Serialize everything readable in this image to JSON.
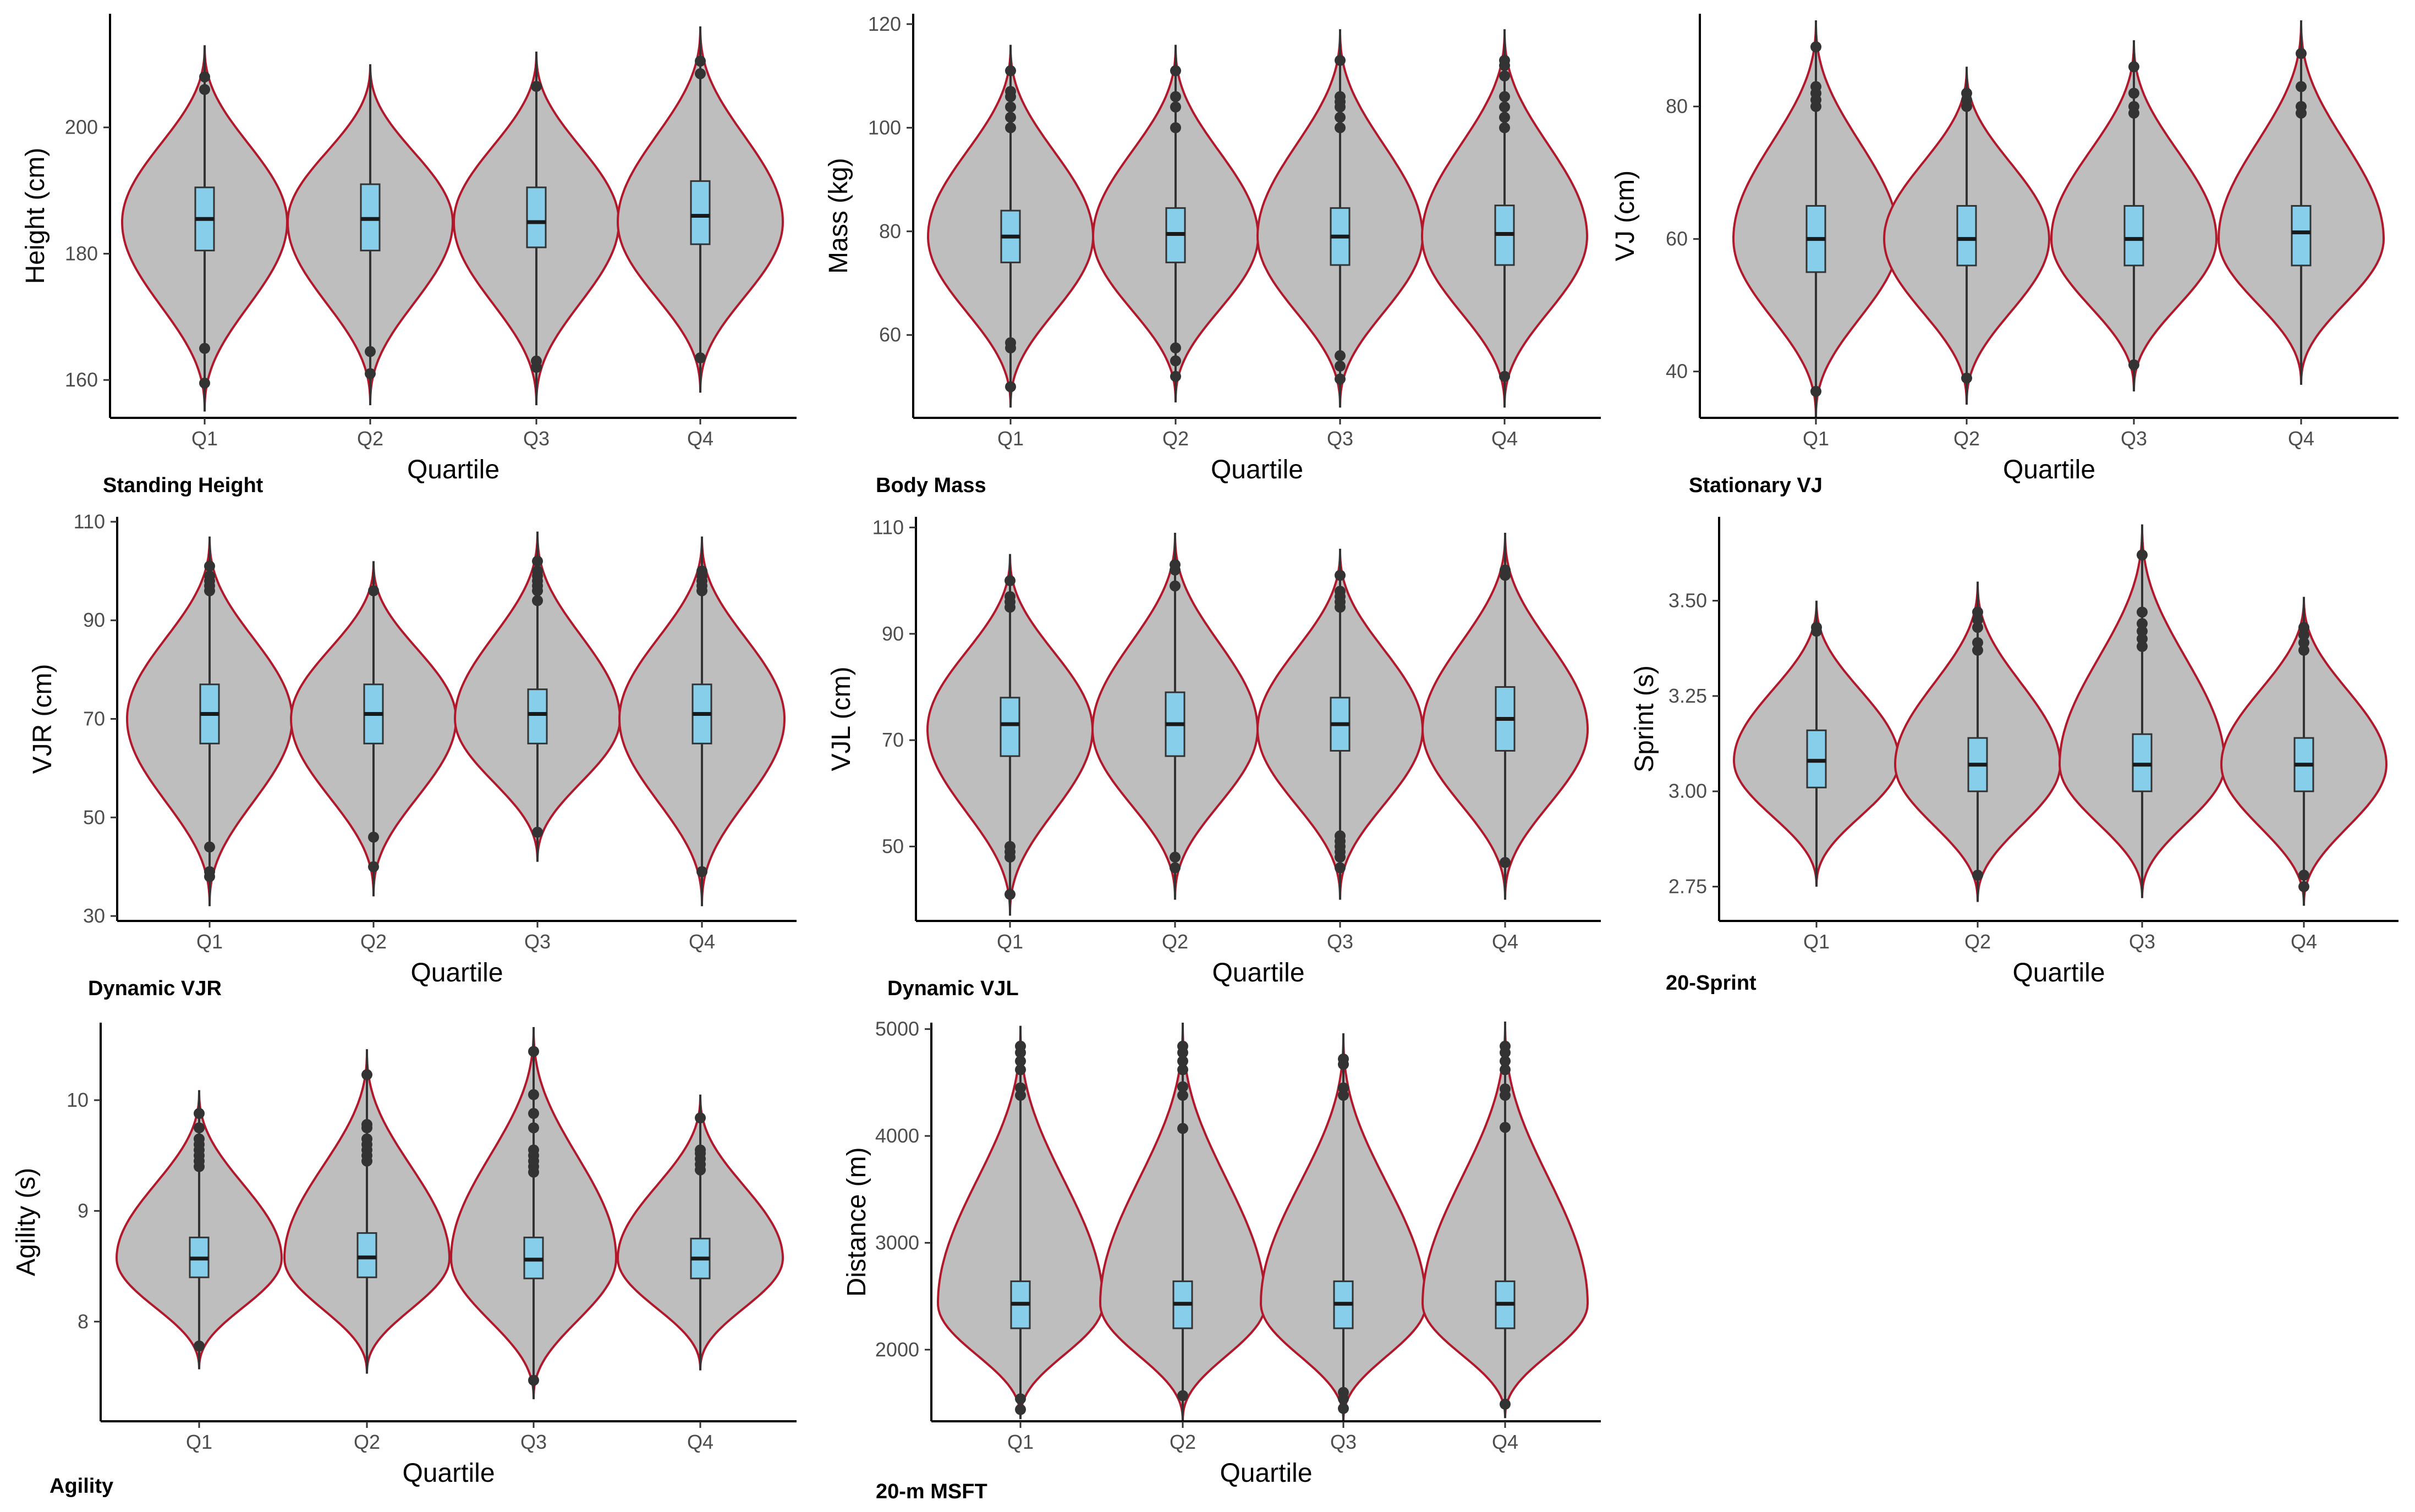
{
  "colors": {
    "violin_fill": "#bebebe",
    "violin_stroke": "#b2182b",
    "box_fill": "#87ceeb",
    "box_stroke": "#333333",
    "median": "#1a1a1a",
    "outlier": "#333333",
    "axis": "#000000",
    "tick_text": "#4d4d4d"
  },
  "chart_data": [
    {
      "type": "violin",
      "caption": "Standing Height",
      "xlabel": "Quartile",
      "ylabel": "Height (cm)",
      "categories": [
        "Q1",
        "Q2",
        "Q3",
        "Q4"
      ],
      "ylim": [
        154,
        218
      ],
      "yticks": [
        160,
        180,
        200
      ],
      "ytick_labels": [
        "160",
        "180",
        "200"
      ],
      "violins": [
        {
          "min": 155,
          "max": 213,
          "peak": 185
        },
        {
          "min": 156,
          "max": 210,
          "peak": 185
        },
        {
          "min": 156,
          "max": 212,
          "peak": 185
        },
        {
          "min": 158,
          "max": 216,
          "peak": 185
        }
      ],
      "boxes": [
        {
          "q1": 180.5,
          "median": 185.5,
          "q3": 190.5
        },
        {
          "q1": 180.5,
          "median": 185.5,
          "q3": 191
        },
        {
          "q1": 181,
          "median": 185,
          "q3": 190.5
        },
        {
          "q1": 181.5,
          "median": 186,
          "q3": 191.5
        }
      ],
      "outliers": [
        [
          159.5,
          165,
          206,
          208
        ],
        [
          161,
          164.5
        ],
        [
          162,
          163,
          206.5
        ],
        [
          163.5,
          208.5,
          210.5
        ]
      ]
    },
    {
      "type": "violin",
      "caption": "Body Mass",
      "xlabel": "Quartile",
      "ylabel": "Mass (kg)",
      "categories": [
        "Q1",
        "Q2",
        "Q3",
        "Q4"
      ],
      "ylim": [
        44,
        122
      ],
      "yticks": [
        60,
        80,
        100,
        120
      ],
      "ytick_labels": [
        "60",
        "80",
        "100",
        "120"
      ],
      "violins": [
        {
          "min": 46,
          "max": 116,
          "peak": 79
        },
        {
          "min": 47,
          "max": 116,
          "peak": 79
        },
        {
          "min": 46,
          "max": 119,
          "peak": 79
        },
        {
          "min": 46,
          "max": 119,
          "peak": 79
        }
      ],
      "boxes": [
        {
          "q1": 74,
          "median": 79,
          "q3": 84
        },
        {
          "q1": 74,
          "median": 79.5,
          "q3": 84.5
        },
        {
          "q1": 73.5,
          "median": 79,
          "q3": 84.5
        },
        {
          "q1": 73.5,
          "median": 79.5,
          "q3": 85
        }
      ],
      "outliers": [
        [
          50,
          57.5,
          58.5,
          100,
          102,
          104,
          106,
          107,
          111
        ],
        [
          52,
          55,
          57.5,
          100,
          104,
          106,
          111
        ],
        [
          51.5,
          54,
          56,
          100,
          102,
          104,
          105,
          106,
          113
        ],
        [
          52,
          100,
          102,
          104,
          106,
          110,
          112,
          113
        ]
      ]
    },
    {
      "type": "violin",
      "caption": "Stationary VJ",
      "xlabel": "Quartile",
      "ylabel": "VJ (cm)",
      "categories": [
        "Q1",
        "Q2",
        "Q3",
        "Q4"
      ],
      "ylim": [
        33,
        94
      ],
      "yticks": [
        40,
        60,
        80
      ],
      "ytick_labels": [
        "40",
        "60",
        "80"
      ],
      "violins": [
        {
          "min": 33,
          "max": 93,
          "peak": 60
        },
        {
          "min": 35,
          "max": 86,
          "peak": 60
        },
        {
          "min": 37,
          "max": 90,
          "peak": 60
        },
        {
          "min": 38,
          "max": 93,
          "peak": 60
        }
      ],
      "boxes": [
        {
          "q1": 55,
          "median": 60,
          "q3": 65
        },
        {
          "q1": 56,
          "median": 60,
          "q3": 65
        },
        {
          "q1": 56,
          "median": 60,
          "q3": 65
        },
        {
          "q1": 56,
          "median": 61,
          "q3": 65
        }
      ],
      "outliers": [
        [
          37,
          80,
          81,
          82,
          83,
          89
        ],
        [
          39,
          80,
          81,
          82
        ],
        [
          41,
          79,
          80,
          82,
          86
        ],
        [
          79,
          80,
          83,
          88
        ]
      ]
    },
    {
      "type": "violin",
      "caption": "Dynamic VJR",
      "xlabel": "Quartile",
      "ylabel": "VJR (cm)",
      "categories": [
        "Q1",
        "Q2",
        "Q3",
        "Q4"
      ],
      "ylim": [
        29,
        111
      ],
      "yticks": [
        30,
        50,
        70,
        90,
        110
      ],
      "ytick_labels": [
        "30",
        "50",
        "70",
        "90",
        "110"
      ],
      "violins": [
        {
          "min": 32,
          "max": 107,
          "peak": 70
        },
        {
          "min": 34,
          "max": 102,
          "peak": 70
        },
        {
          "min": 41,
          "max": 108,
          "peak": 70
        },
        {
          "min": 32,
          "max": 107,
          "peak": 70
        }
      ],
      "boxes": [
        {
          "q1": 65,
          "median": 71,
          "q3": 77
        },
        {
          "q1": 65,
          "median": 71,
          "q3": 77
        },
        {
          "q1": 65,
          "median": 71,
          "q3": 76
        },
        {
          "q1": 65,
          "median": 71,
          "q3": 77
        }
      ],
      "outliers": [
        [
          38,
          39,
          44,
          96,
          97,
          98,
          99,
          101
        ],
        [
          40,
          46,
          96
        ],
        [
          47,
          94,
          96,
          97,
          98,
          99,
          100,
          102
        ],
        [
          39,
          96,
          97,
          98,
          99,
          100
        ]
      ]
    },
    {
      "type": "violin",
      "caption": "Dynamic VJL",
      "xlabel": "Quartile",
      "ylabel": "VJL (cm)",
      "categories": [
        "Q1",
        "Q2",
        "Q3",
        "Q4"
      ],
      "ylim": [
        36,
        112
      ],
      "yticks": [
        50,
        70,
        90,
        110
      ],
      "ytick_labels": [
        "50",
        "70",
        "90",
        "110"
      ],
      "violins": [
        {
          "min": 37,
          "max": 105,
          "peak": 72
        },
        {
          "min": 40,
          "max": 109,
          "peak": 72
        },
        {
          "min": 40,
          "max": 106,
          "peak": 72
        },
        {
          "min": 40,
          "max": 109,
          "peak": 72
        }
      ],
      "boxes": [
        {
          "q1": 67,
          "median": 73,
          "q3": 78
        },
        {
          "q1": 67,
          "median": 73,
          "q3": 79
        },
        {
          "q1": 68,
          "median": 73,
          "q3": 78
        },
        {
          "q1": 68,
          "median": 74,
          "q3": 80
        }
      ],
      "outliers": [
        [
          41,
          48,
          49,
          50,
          95,
          96,
          97,
          100
        ],
        [
          46,
          48,
          99,
          102,
          103
        ],
        [
          46,
          48,
          49,
          50,
          51,
          52,
          95,
          96,
          97,
          98,
          101
        ],
        [
          47,
          101,
          102
        ]
      ]
    },
    {
      "type": "violin",
      "caption": "20-Sprint",
      "xlabel": "Quartile",
      "ylabel": "Sprint (s)",
      "categories": [
        "Q1",
        "Q2",
        "Q3",
        "Q4"
      ],
      "ylim": [
        2.66,
        3.72
      ],
      "yticks": [
        2.75,
        3.0,
        3.25,
        3.5
      ],
      "ytick_labels": [
        "2.75",
        "3.00",
        "3.25",
        "3.50"
      ],
      "violins": [
        {
          "min": 2.75,
          "max": 3.5,
          "peak": 3.08
        },
        {
          "min": 2.71,
          "max": 3.55,
          "peak": 3.07
        },
        {
          "min": 2.72,
          "max": 3.7,
          "peak": 3.07
        },
        {
          "min": 2.7,
          "max": 3.51,
          "peak": 3.07
        }
      ],
      "boxes": [
        {
          "q1": 3.01,
          "median": 3.08,
          "q3": 3.16
        },
        {
          "q1": 3.0,
          "median": 3.07,
          "q3": 3.14
        },
        {
          "q1": 3.0,
          "median": 3.07,
          "q3": 3.15
        },
        {
          "q1": 3.0,
          "median": 3.07,
          "q3": 3.14
        }
      ],
      "outliers": [
        [
          3.42,
          3.43
        ],
        [
          2.78,
          3.37,
          3.39,
          3.43,
          3.45,
          3.47
        ],
        [
          3.38,
          3.4,
          3.42,
          3.44,
          3.47,
          3.62
        ],
        [
          2.75,
          2.78,
          3.37,
          3.39,
          3.41,
          3.43
        ]
      ]
    },
    {
      "type": "violin",
      "caption": "Agility",
      "xlabel": "Quartile",
      "ylabel": "Agility (s)",
      "categories": [
        "Q1",
        "Q2",
        "Q3",
        "Q4"
      ],
      "ylim": [
        7.1,
        10.7
      ],
      "yticks": [
        8,
        9,
        10
      ],
      "ytick_labels": [
        "8",
        "9",
        "10"
      ],
      "violins": [
        {
          "min": 7.57,
          "max": 10.09,
          "peak": 8.57
        },
        {
          "min": 7.53,
          "max": 10.46,
          "peak": 8.57
        },
        {
          "min": 7.3,
          "max": 10.66,
          "peak": 8.57
        },
        {
          "min": 7.56,
          "max": 10.05,
          "peak": 8.57
        }
      ],
      "boxes": [
        {
          "q1": 8.4,
          "median": 8.57,
          "q3": 8.76
        },
        {
          "q1": 8.4,
          "median": 8.58,
          "q3": 8.8
        },
        {
          "q1": 8.39,
          "median": 8.56,
          "q3": 8.76
        },
        {
          "q1": 8.39,
          "median": 8.57,
          "q3": 8.75
        }
      ],
      "outliers": [
        [
          7.78,
          9.4,
          9.45,
          9.5,
          9.55,
          9.6,
          9.65,
          9.75,
          9.88
        ],
        [
          9.45,
          9.5,
          9.55,
          9.6,
          9.65,
          9.75,
          9.78,
          10.23
        ],
        [
          7.47,
          9.35,
          9.4,
          9.45,
          9.5,
          9.55,
          9.75,
          9.88,
          10.05,
          10.44
        ],
        [
          9.37,
          9.42,
          9.47,
          9.52,
          9.55,
          9.84
        ]
      ]
    },
    {
      "type": "violin",
      "caption": "20-m MSFT",
      "xlabel": "Quartile",
      "ylabel": "Distance (m)",
      "categories": [
        "Q1",
        "Q2",
        "Q3",
        "Q4"
      ],
      "ylim": [
        1330,
        5060
      ],
      "yticks": [
        2000,
        3000,
        4000,
        5000
      ],
      "ytick_labels": [
        "2000",
        "3000",
        "4000",
        "5000"
      ],
      "violins": [
        {
          "min": 1350,
          "max": 5030,
          "peak": 2430
        },
        {
          "min": 1330,
          "max": 5060,
          "peak": 2430
        },
        {
          "min": 1330,
          "max": 4960,
          "peak": 2430
        },
        {
          "min": 1360,
          "max": 5070,
          "peak": 2430
        }
      ],
      "boxes": [
        {
          "q1": 2200,
          "median": 2430,
          "q3": 2640
        },
        {
          "q1": 2200,
          "median": 2430,
          "q3": 2640
        },
        {
          "q1": 2200,
          "median": 2430,
          "q3": 2640
        },
        {
          "q1": 2200,
          "median": 2430,
          "q3": 2640
        }
      ],
      "outliers": [
        [
          1440,
          1540,
          4380,
          4450,
          4620,
          4700,
          4780,
          4840
        ],
        [
          1570,
          4070,
          4380,
          4460,
          4620,
          4700,
          4780,
          4840
        ],
        [
          1450,
          1540,
          1600,
          4380,
          4450,
          4670,
          4720
        ],
        [
          1490,
          4080,
          4380,
          4440,
          4620,
          4700,
          4780,
          4840
        ]
      ]
    }
  ]
}
